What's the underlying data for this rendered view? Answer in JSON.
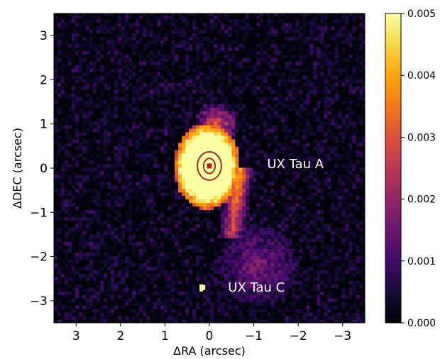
{
  "chart_data": {
    "type": "heatmap",
    "title": "",
    "xlabel": "ΔRA (arcsec)",
    "ylabel": "ΔDEC (arcsec)",
    "xlim": [
      3.5,
      -3.5
    ],
    "ylim": [
      -3.5,
      3.5
    ],
    "x_ticks": [
      {
        "value": 3,
        "label": "3"
      },
      {
        "value": 2,
        "label": "2"
      },
      {
        "value": 1,
        "label": "1"
      },
      {
        "value": 0,
        "label": "0"
      },
      {
        "value": -1,
        "label": "−1"
      },
      {
        "value": -2,
        "label": "−2"
      },
      {
        "value": -3,
        "label": "−3"
      }
    ],
    "y_ticks": [
      {
        "value": 3,
        "label": "3"
      },
      {
        "value": 2,
        "label": "2"
      },
      {
        "value": 1,
        "label": "1"
      },
      {
        "value": 0,
        "label": "0"
      },
      {
        "value": -1,
        "label": "−1"
      },
      {
        "value": -2,
        "label": "−2"
      },
      {
        "value": -3,
        "label": "−3"
      }
    ],
    "colorbar": {
      "colormap": "inferno",
      "range": [
        0.0,
        0.005
      ],
      "ticks": [
        {
          "value": 0.005,
          "label": "0.005"
        },
        {
          "value": 0.004,
          "label": "0.004"
        },
        {
          "value": 0.003,
          "label": "0.003"
        },
        {
          "value": 0.002,
          "label": "0.002"
        },
        {
          "value": 0.001,
          "label": "0.001"
        },
        {
          "value": 0.0,
          "label": "0.000"
        }
      ]
    },
    "annotations": [
      {
        "text": "UX Tau A",
        "x": -1.3,
        "y": 0.1
      },
      {
        "text": "UX Tau C",
        "x": -0.42,
        "y": -2.7
      }
    ],
    "markers": [
      {
        "kind": "square",
        "x": 0.0,
        "y": 0.05,
        "color": "#b22222"
      },
      {
        "kind": "square",
        "x": 0.15,
        "y": -2.7,
        "color": "#ffff9e"
      }
    ],
    "contours": [
      {
        "x": 0.0,
        "y": 0.05,
        "rx_arcsec": 0.27,
        "ry_arcsec": 0.32,
        "color": "#a52a2a"
      },
      {
        "x": 0.0,
        "y": 0.05,
        "rx_arcsec": 0.13,
        "ry_arcsec": 0.17,
        "color": "#a52a2a"
      }
    ],
    "grid": false
  }
}
